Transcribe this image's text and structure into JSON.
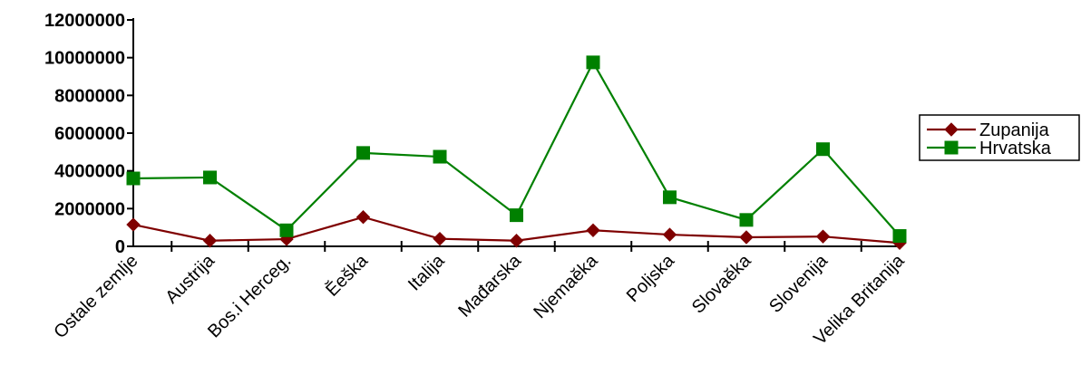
{
  "chart_data": {
    "type": "line",
    "categories": [
      "Ostale zemlje",
      "Austrija",
      "Bos.i Herceg.",
      "Ĕeška",
      "Italija",
      "Mađarska",
      "Njemaĕka",
      "Poljska",
      "Slovaĕka",
      "Slovenija",
      "Velika Britanija"
    ],
    "series": [
      {
        "name": "Zupanija",
        "color": "#7f0000",
        "marker": "diamond",
        "values": [
          1150000,
          300000,
          380000,
          1550000,
          400000,
          300000,
          850000,
          620000,
          480000,
          520000,
          180000
        ]
      },
      {
        "name": "Hrvatska",
        "color": "#008000",
        "marker": "square",
        "values": [
          3600000,
          3650000,
          850000,
          4950000,
          4750000,
          1650000,
          9750000,
          2600000,
          1400000,
          5150000,
          550000
        ]
      }
    ],
    "ylim": [
      0,
      12000000
    ],
    "yticks": [
      "0",
      "2000000",
      "4000000",
      "6000000",
      "8000000",
      "10000000",
      "12000000"
    ],
    "grid": false,
    "legend_position": "right",
    "title": "",
    "xlabel": "",
    "ylabel": ""
  }
}
